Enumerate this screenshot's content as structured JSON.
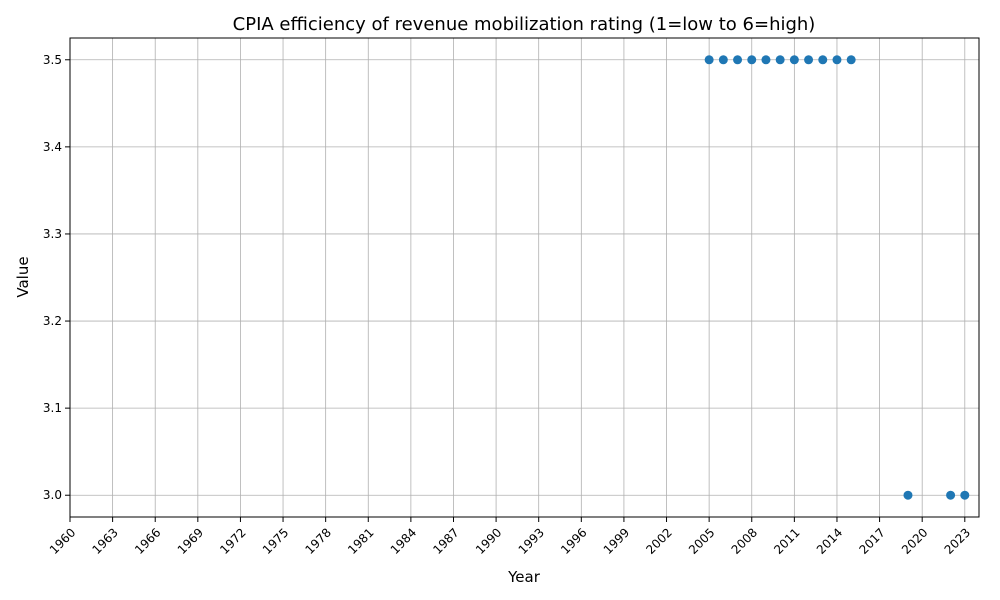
{
  "chart_data": {
    "type": "scatter",
    "title": "CPIA efficiency of revenue mobilization rating (1=low to 6=high)",
    "xlabel": "Year",
    "ylabel": "Value",
    "xlim": [
      1960,
      2024
    ],
    "ylim": [
      2.975,
      3.525
    ],
    "x_ticks": [
      "1960",
      "1963",
      "1966",
      "1969",
      "1972",
      "1975",
      "1978",
      "1981",
      "1984",
      "1987",
      "1990",
      "1993",
      "1996",
      "1999",
      "2002",
      "2005",
      "2008",
      "2011",
      "2014",
      "2017",
      "2020",
      "2023"
    ],
    "y_ticks": [
      "3.0",
      "3.1",
      "3.2",
      "3.3",
      "3.4",
      "3.5"
    ],
    "grid": true,
    "marker_color": "#1f77b4",
    "series": [
      {
        "x": [
          2005,
          2006,
          2007,
          2008,
          2009,
          2010,
          2011,
          2012,
          2013,
          2014,
          2015,
          2019,
          2022,
          2023
        ],
        "y": [
          3.5,
          3.5,
          3.5,
          3.5,
          3.5,
          3.5,
          3.5,
          3.5,
          3.5,
          3.5,
          3.5,
          3.0,
          3.0,
          3.0
        ]
      }
    ]
  }
}
